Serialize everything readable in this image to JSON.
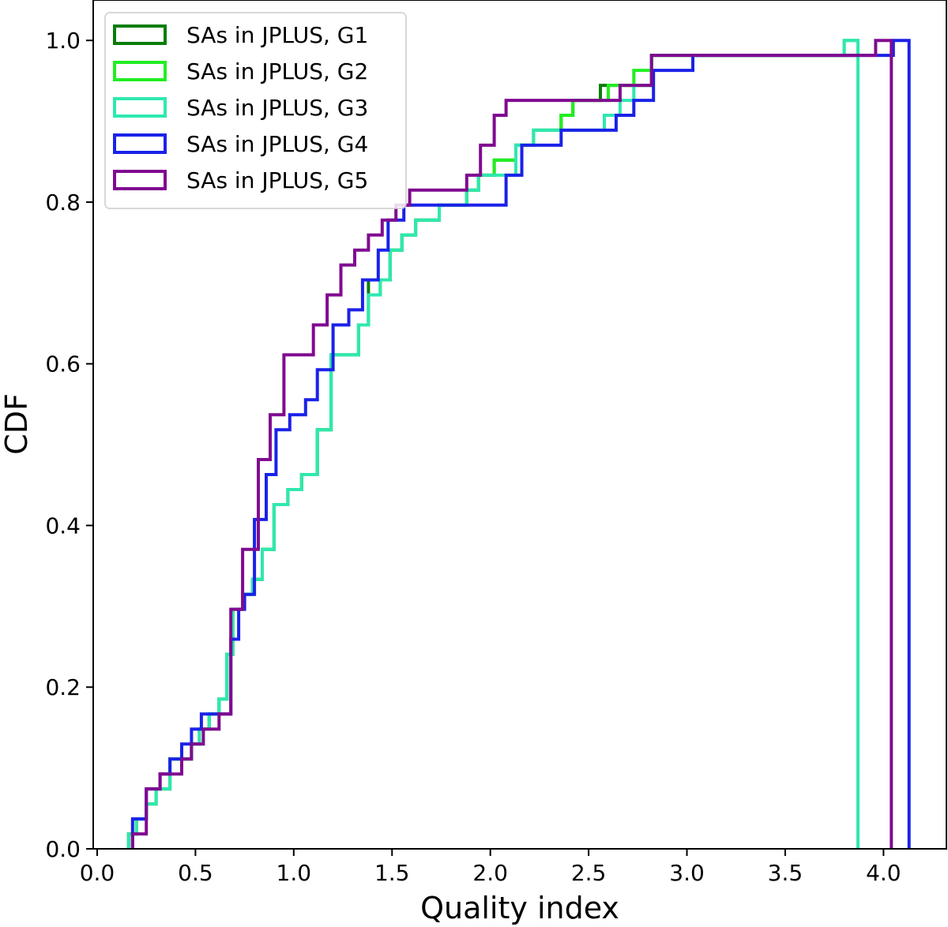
{
  "chart_data": {
    "type": "line",
    "subtype": "step-cdf",
    "title": "",
    "xlabel": "Quality index",
    "ylabel": "CDF",
    "xlim": [
      -0.02,
      4.32
    ],
    "ylim": [
      0.0,
      1.05
    ],
    "xticks": [
      0.0,
      0.5,
      1.0,
      1.5,
      2.0,
      2.5,
      3.0,
      3.5,
      4.0
    ],
    "xtick_labels": [
      "0.0",
      "0.5",
      "1.0",
      "1.5",
      "2.0",
      "2.5",
      "3.0",
      "3.5",
      "4.0"
    ],
    "yticks": [
      0.0,
      0.2,
      0.4,
      0.6,
      0.8,
      1.0
    ],
    "ytick_labels": [
      "0.0",
      "0.2",
      "0.4",
      "0.6",
      "0.8",
      "1.0"
    ],
    "legend_position": "top-left",
    "series": [
      {
        "name": "SAs in JPLUS, G1",
        "color": "#0a7d0a",
        "x": [
          0.16,
          0.2,
          0.25,
          0.3,
          0.37,
          0.42,
          0.48,
          0.52,
          0.57,
          0.62,
          0.66,
          0.69,
          0.74,
          0.79,
          0.84,
          0.9,
          0.97,
          1.04,
          1.12,
          1.19,
          1.26,
          1.33,
          1.38,
          1.44,
          1.49,
          1.55,
          1.62,
          1.74,
          1.88,
          1.94,
          2.02,
          2.13,
          2.22,
          2.36,
          2.42,
          2.5,
          2.56,
          2.66,
          2.73,
          2.82,
          3.87
        ],
        "y": [
          0.0185,
          0.037,
          0.0556,
          0.0741,
          0.1111,
          0.1111,
          0.1296,
          0.1481,
          0.1667,
          0.1852,
          0.2407,
          0.2963,
          0.3148,
          0.3333,
          0.3704,
          0.4259,
          0.4444,
          0.463,
          0.5185,
          0.6111,
          0.6111,
          0.6481,
          0.7037,
          0.7037,
          0.7407,
          0.7593,
          0.7778,
          0.7963,
          0.8148,
          0.8333,
          0.8519,
          0.8704,
          0.8889,
          0.9074,
          0.9259,
          0.9259,
          0.9444,
          0.9444,
          0.9444,
          0.9815,
          1.0
        ],
        "x_end": 3.87
      },
      {
        "name": "SAs in JPLUS, G2",
        "color": "#22ee22",
        "x": [
          0.16,
          0.2,
          0.25,
          0.3,
          0.37,
          0.42,
          0.48,
          0.52,
          0.57,
          0.62,
          0.66,
          0.69,
          0.74,
          0.79,
          0.84,
          0.9,
          0.97,
          1.04,
          1.12,
          1.19,
          1.26,
          1.33,
          1.38,
          1.44,
          1.49,
          1.55,
          1.62,
          1.74,
          1.88,
          1.94,
          2.02,
          2.13,
          2.22,
          2.36,
          2.42,
          2.5,
          2.6,
          2.66,
          2.73,
          2.82,
          2.9,
          3.8
        ],
        "y": [
          0.0185,
          0.037,
          0.0556,
          0.0741,
          0.1111,
          0.1111,
          0.1296,
          0.1481,
          0.1667,
          0.1852,
          0.2407,
          0.2963,
          0.3148,
          0.3333,
          0.3704,
          0.4259,
          0.4444,
          0.463,
          0.5185,
          0.6111,
          0.6111,
          0.6481,
          0.6852,
          0.7037,
          0.7407,
          0.7593,
          0.7778,
          0.7963,
          0.8148,
          0.8333,
          0.8519,
          0.8704,
          0.8889,
          0.9074,
          0.9259,
          0.9259,
          0.9444,
          0.9444,
          0.963,
          0.9815,
          0.9815,
          1.0
        ],
        "x_end": 3.87
      },
      {
        "name": "SAs in JPLUS, G3",
        "color": "#2fe8b0",
        "x": [
          0.16,
          0.2,
          0.25,
          0.3,
          0.37,
          0.42,
          0.48,
          0.52,
          0.57,
          0.62,
          0.66,
          0.69,
          0.74,
          0.79,
          0.84,
          0.9,
          0.97,
          1.04,
          1.12,
          1.19,
          1.26,
          1.33,
          1.38,
          1.44,
          1.49,
          1.55,
          1.62,
          1.74,
          1.88,
          1.94,
          2.02,
          2.13,
          2.22,
          2.36,
          2.42,
          2.58,
          2.66,
          2.73,
          2.82,
          3.8
        ],
        "y": [
          0.0185,
          0.037,
          0.0556,
          0.0741,
          0.1111,
          0.1111,
          0.1296,
          0.1481,
          0.1667,
          0.1852,
          0.2407,
          0.2963,
          0.3148,
          0.3333,
          0.3704,
          0.4259,
          0.4444,
          0.463,
          0.5185,
          0.6111,
          0.6111,
          0.6481,
          0.6852,
          0.7037,
          0.7407,
          0.7593,
          0.7778,
          0.7963,
          0.8148,
          0.8333,
          0.8333,
          0.8704,
          0.8889,
          0.8889,
          0.8889,
          0.9074,
          0.9259,
          0.9444,
          0.9815,
          1.0
        ],
        "x_end": 3.87
      },
      {
        "name": "SAs in JPLUS, G4",
        "color": "#1a22e8",
        "x": [
          0.18,
          0.25,
          0.32,
          0.37,
          0.43,
          0.48,
          0.53,
          0.61,
          0.68,
          0.72,
          0.75,
          0.8,
          0.86,
          0.91,
          0.98,
          1.06,
          1.12,
          1.2,
          1.28,
          1.35,
          1.43,
          1.48,
          1.56,
          1.72,
          1.88,
          2.08,
          2.16,
          2.26,
          2.36,
          2.64,
          2.73,
          2.83,
          2.91,
          3.03,
          4.05
        ],
        "y": [
          0.037,
          0.0741,
          0.0926,
          0.1111,
          0.1296,
          0.1481,
          0.1667,
          0.1667,
          0.2593,
          0.2963,
          0.3148,
          0.4074,
          0.463,
          0.5185,
          0.537,
          0.5556,
          0.5926,
          0.6481,
          0.6667,
          0.7037,
          0.7407,
          0.7778,
          0.7963,
          0.7963,
          0.7963,
          0.8333,
          0.8704,
          0.8704,
          0.8889,
          0.9074,
          0.9259,
          0.963,
          0.963,
          0.9815,
          1.0
        ],
        "x_end": 4.13
      },
      {
        "name": "SAs in JPLUS, G5",
        "color": "#800a90",
        "x": [
          0.18,
          0.25,
          0.32,
          0.37,
          0.43,
          0.48,
          0.54,
          0.62,
          0.68,
          0.74,
          0.82,
          0.88,
          0.95,
          1.1,
          1.17,
          1.24,
          1.31,
          1.38,
          1.45,
          1.52,
          1.59,
          1.67,
          1.88,
          1.95,
          2.02,
          2.08,
          2.12,
          2.25,
          2.5,
          2.66,
          2.82,
          3.96,
          4.04
        ],
        "y": [
          0.0185,
          0.0741,
          0.0926,
          0.0926,
          0.1111,
          0.1296,
          0.1481,
          0.1667,
          0.2963,
          0.3704,
          0.4815,
          0.537,
          0.6111,
          0.6481,
          0.6852,
          0.7222,
          0.7407,
          0.7593,
          0.7778,
          0.7963,
          0.8148,
          0.8148,
          0.8333,
          0.8704,
          0.9074,
          0.9259,
          0.9259,
          0.9259,
          0.9259,
          0.9444,
          0.9815,
          1.0,
          1.0
        ],
        "x_end": 4.04
      }
    ]
  }
}
